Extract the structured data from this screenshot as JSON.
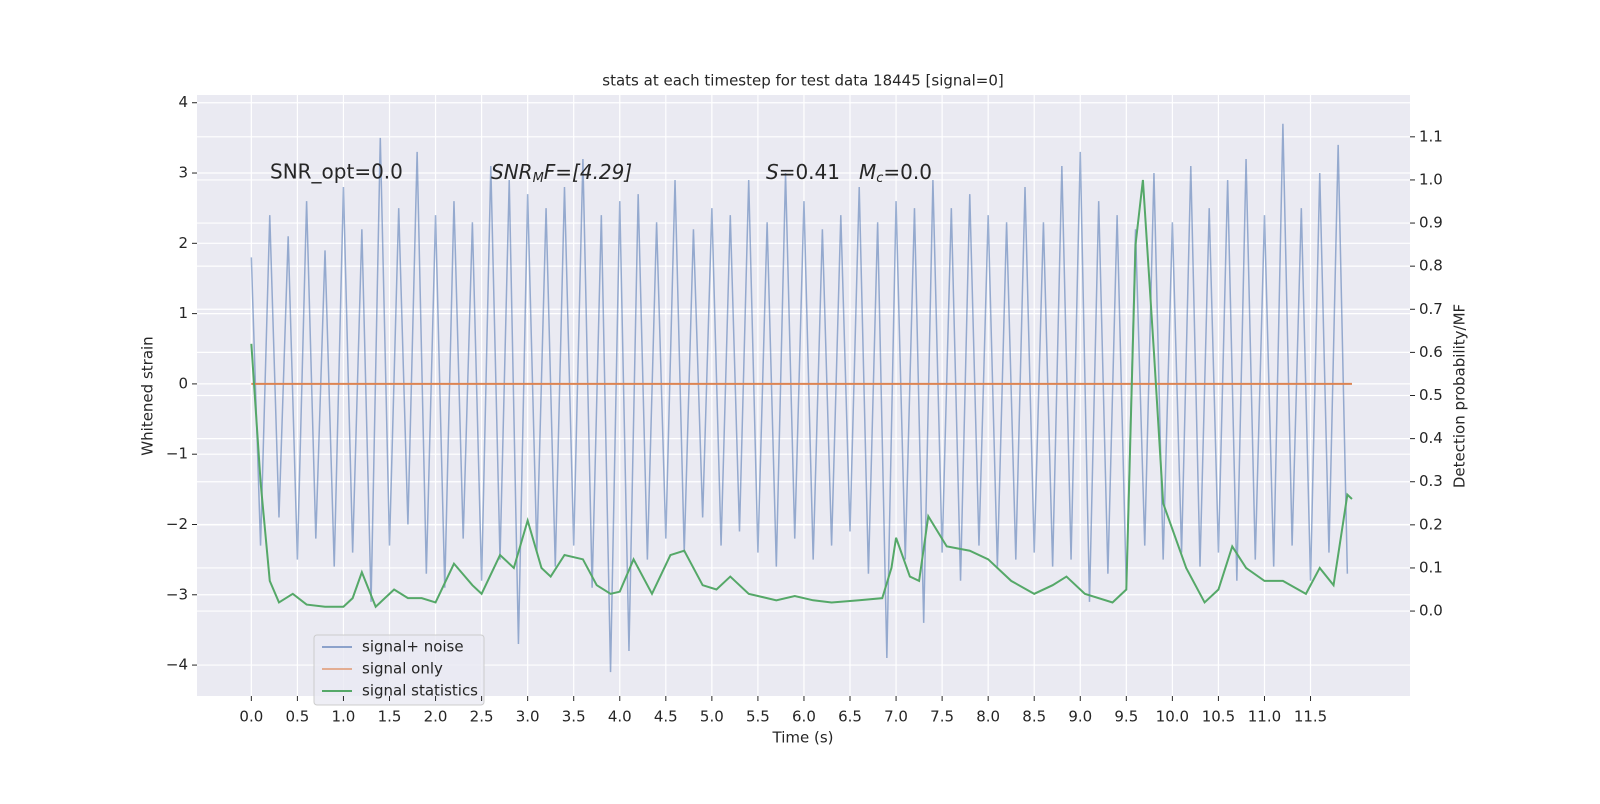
{
  "chart_data": {
    "type": "line",
    "title": "stats at each timestep for test data 18445 [signal=0]",
    "x_label": "Time (s)",
    "y_label": "Whitened strain",
    "y2_label": "Detection probability/MF",
    "annotations": [
      [
        "SNR_opt=0.0"
      ],
      [
        "SNR",
        "M",
        "F=[4.29]"
      ],
      [
        "S",
        "=0.41"
      ],
      [
        "M",
        "c",
        "=0.0"
      ]
    ],
    "xlim": [
      -0.59,
      12.58
    ],
    "ylim": [
      -4.44,
      4.11
    ],
    "y2lim": [
      -0.197,
      1.197
    ],
    "grid": true,
    "legend": "lower left",
    "xticks": [
      {
        "value": 0,
        "label": "0.0"
      },
      {
        "value": 0.5,
        "label": "0.5"
      },
      {
        "value": 1,
        "label": "1.0"
      },
      {
        "value": 1.5,
        "label": "1.5"
      },
      {
        "value": 2,
        "label": "2.0"
      },
      {
        "value": 2.5,
        "label": "2.5"
      },
      {
        "value": 3,
        "label": "3.0"
      },
      {
        "value": 3.5,
        "label": "3.5"
      },
      {
        "value": 4,
        "label": "4.0"
      },
      {
        "value": 4.5,
        "label": "4.5"
      },
      {
        "value": 5,
        "label": "5.0"
      },
      {
        "value": 5.5,
        "label": "5.5"
      },
      {
        "value": 6,
        "label": "6.0"
      },
      {
        "value": 6.5,
        "label": "6.5"
      },
      {
        "value": 7,
        "label": "7.0"
      },
      {
        "value": 7.5,
        "label": "7.5"
      },
      {
        "value": 8,
        "label": "8.0"
      },
      {
        "value": 8.5,
        "label": "8.5"
      },
      {
        "value": 9,
        "label": "9.0"
      },
      {
        "value": 9.5,
        "label": "9.5"
      },
      {
        "value": 10,
        "label": "10.0"
      },
      {
        "value": 10.5,
        "label": "10.5"
      },
      {
        "value": 11,
        "label": "11.0"
      },
      {
        "value": 11.5,
        "label": "11.5"
      }
    ],
    "yticks": [
      {
        "value": -4,
        "label": "−4"
      },
      {
        "value": -3,
        "label": "−3"
      },
      {
        "value": -2,
        "label": "−2"
      },
      {
        "value": -1,
        "label": "−1"
      },
      0,
      1,
      2,
      3,
      4
    ],
    "y2ticks": [
      {
        "value": 0,
        "label": "0.0"
      },
      {
        "value": 0.1,
        "label": "0.1"
      },
      {
        "value": 0.2,
        "label": "0.2"
      },
      {
        "value": 0.3,
        "label": "0.3"
      },
      {
        "value": 0.4,
        "label": "0.4"
      },
      {
        "value": 0.5,
        "label": "0.5"
      },
      {
        "value": 0.6,
        "label": "0.6"
      },
      {
        "value": 0.7,
        "label": "0.7"
      },
      {
        "value": 0.8,
        "label": "0.8"
      },
      {
        "value": 0.9,
        "label": "0.9"
      },
      {
        "value": 1,
        "label": "1.0"
      },
      {
        "value": 1.1,
        "label": "1.1"
      }
    ],
    "series": [
      {
        "name": "signal+ noise",
        "color": "#4c72b0",
        "x": [
          0.0,
          0.1,
          0.2,
          0.3,
          0.4,
          0.5,
          0.6,
          0.7,
          0.8,
          0.9,
          1.0,
          1.1,
          1.2,
          1.3,
          1.4,
          1.5,
          1.6,
          1.7,
          1.8,
          1.9,
          2.0,
          2.1,
          2.2,
          2.3,
          2.4,
          2.5,
          2.6,
          2.7,
          2.8,
          2.9,
          3.0,
          3.1,
          3.2,
          3.3,
          3.4,
          3.5,
          3.6,
          3.7,
          3.8,
          3.9,
          4.0,
          4.1,
          4.2,
          4.3,
          4.4,
          4.5,
          4.6,
          4.7,
          4.8,
          4.9,
          5.0,
          5.1,
          5.2,
          5.3,
          5.4,
          5.5,
          5.6,
          5.7,
          5.8,
          5.9,
          6.0,
          6.1,
          6.2,
          6.3,
          6.4,
          6.5,
          6.6,
          6.7,
          6.8,
          6.9,
          7.0,
          7.1,
          7.2,
          7.3,
          7.4,
          7.5,
          7.6,
          7.7,
          7.8,
          7.9,
          8.0,
          8.1,
          8.2,
          8.3,
          8.4,
          8.5,
          8.6,
          8.7,
          8.8,
          8.9,
          9.0,
          9.1,
          9.2,
          9.3,
          9.4,
          9.5,
          9.6,
          9.7,
          9.8,
          9.9,
          10.0,
          10.1,
          10.2,
          10.3,
          10.4,
          10.5,
          10.6,
          10.7,
          10.8,
          10.9,
          11.0,
          11.1,
          11.2,
          11.3,
          11.4,
          11.5,
          11.6,
          11.7,
          11.8,
          11.9
        ],
        "values": [
          1.8,
          -2.3,
          2.4,
          -1.9,
          2.1,
          -2.5,
          2.6,
          -2.2,
          1.9,
          -2.6,
          2.8,
          -2.4,
          2.2,
          -3.1,
          3.5,
          -2.3,
          2.5,
          -2.0,
          3.3,
          -2.7,
          2.4,
          -2.9,
          2.6,
          -2.2,
          2.3,
          -2.8,
          3.1,
          -2.5,
          2.9,
          -3.7,
          2.7,
          -2.4,
          2.5,
          -2.6,
          2.8,
          -2.3,
          3.2,
          -2.9,
          2.4,
          -4.1,
          2.6,
          -3.8,
          2.7,
          -2.5,
          2.3,
          -2.2,
          2.9,
          -2.4,
          2.2,
          -1.9,
          2.5,
          -2.3,
          2.4,
          -2.1,
          2.9,
          -2.4,
          2.3,
          -2.6,
          3.0,
          -2.2,
          2.6,
          -2.5,
          2.2,
          -2.3,
          2.4,
          -2.1,
          2.8,
          -2.7,
          2.3,
          -3.9,
          2.6,
          -2.5,
          2.5,
          -3.4,
          2.9,
          -2.4,
          2.5,
          -2.8,
          2.7,
          -2.3,
          2.4,
          -2.6,
          2.3,
          -2.5,
          2.8,
          -2.4,
          2.3,
          -2.6,
          3.1,
          -2.5,
          3.3,
          -3.1,
          2.6,
          -2.7,
          2.4,
          -2.9,
          2.2,
          -2.3,
          3.0,
          -2.5,
          2.3,
          -2.4,
          3.1,
          -2.6,
          2.5,
          -2.4,
          2.9,
          -2.8,
          3.2,
          -2.5,
          2.4,
          -2.6,
          3.7,
          -2.3,
          2.5,
          -2.8,
          3.0,
          -2.4,
          3.4,
          -2.7
        ]
      },
      {
        "name": "signal only",
        "color": "#dd8452",
        "x": [
          0.0,
          11.95
        ],
        "values": [
          0,
          0
        ]
      },
      {
        "name": "signal statistics",
        "color": "#55a868",
        "axis": "y2",
        "x": [
          0.0,
          0.1,
          0.2,
          0.3,
          0.45,
          0.6,
          0.8,
          1.0,
          1.1,
          1.2,
          1.35,
          1.55,
          1.7,
          1.85,
          2.0,
          2.2,
          2.4,
          2.5,
          2.7,
          2.85,
          3.0,
          3.15,
          3.25,
          3.4,
          3.6,
          3.75,
          3.9,
          4.0,
          4.15,
          4.35,
          4.55,
          4.7,
          4.9,
          5.05,
          5.2,
          5.4,
          5.7,
          5.9,
          6.1,
          6.3,
          6.6,
          6.85,
          6.95,
          7.0,
          7.15,
          7.25,
          7.35,
          7.55,
          7.8,
          8.0,
          8.25,
          8.5,
          8.7,
          8.85,
          9.05,
          9.35,
          9.5,
          9.6,
          9.68,
          9.8,
          9.9,
          10.15,
          10.35,
          10.5,
          10.65,
          10.8,
          11.0,
          11.2,
          11.45,
          11.6,
          11.75,
          11.9,
          11.95
        ],
        "values": [
          0.62,
          0.3,
          0.07,
          0.02,
          0.04,
          0.015,
          0.01,
          0.01,
          0.03,
          0.09,
          0.01,
          0.05,
          0.03,
          0.03,
          0.02,
          0.11,
          0.06,
          0.04,
          0.13,
          0.1,
          0.21,
          0.1,
          0.08,
          0.13,
          0.12,
          0.06,
          0.04,
          0.045,
          0.12,
          0.04,
          0.13,
          0.14,
          0.06,
          0.05,
          0.08,
          0.04,
          0.025,
          0.035,
          0.025,
          0.02,
          0.025,
          0.03,
          0.1,
          0.17,
          0.08,
          0.07,
          0.22,
          0.15,
          0.14,
          0.12,
          0.07,
          0.04,
          0.06,
          0.08,
          0.04,
          0.02,
          0.05,
          0.85,
          1.0,
          0.6,
          0.25,
          0.1,
          0.02,
          0.05,
          0.15,
          0.1,
          0.07,
          0.07,
          0.04,
          0.1,
          0.06,
          0.27,
          0.26
        ]
      }
    ]
  }
}
